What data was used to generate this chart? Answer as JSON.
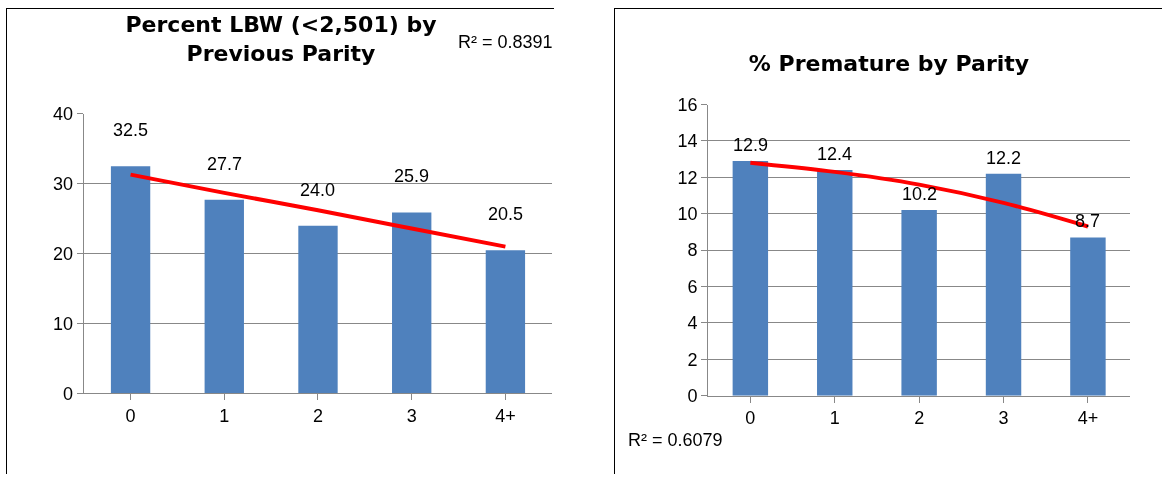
{
  "chart_data": [
    {
      "type": "bar",
      "title": "Percent LBW (<2,501) by\nPrevious Parity",
      "categories": [
        "0",
        "1",
        "2",
        "3",
        "4+"
      ],
      "series": [
        {
          "type": "bar",
          "color": "#4f81bd",
          "values": [
            32.5,
            27.7,
            24.0,
            25.9,
            20.5
          ],
          "value_labels": [
            "32.5",
            "27.7",
            "24.0",
            "25.9",
            "20.5"
          ]
        },
        {
          "type": "line",
          "color": "#ff0000",
          "x": [
            "0",
            "1",
            "2",
            "3",
            "4+"
          ],
          "values": [
            31.3,
            28.7,
            26.2,
            23.6,
            21.0
          ]
        }
      ],
      "ylim": [
        0,
        40
      ],
      "yticks": [
        0,
        10,
        20,
        30,
        40
      ],
      "grid": "y",
      "annotations": [
        "R² = 0.8391"
      ]
    },
    {
      "type": "bar",
      "title": "% Premature by Parity",
      "categories": [
        "0",
        "1",
        "2",
        "3",
        "4+"
      ],
      "series": [
        {
          "type": "bar",
          "color": "#4f81bd",
          "values": [
            12.9,
            12.4,
            10.2,
            12.2,
            8.7
          ],
          "value_labels": [
            "12.9",
            "12.4",
            "10.2",
            "12.2",
            "8.7"
          ]
        },
        {
          "type": "line",
          "color": "#ff0000",
          "x": [
            "0",
            "1",
            "2",
            "3",
            "4+"
          ],
          "values": [
            12.8,
            12.3,
            11.6,
            10.6,
            9.3
          ]
        }
      ],
      "ylim": [
        0,
        16
      ],
      "yticks": [
        0,
        2,
        4,
        6,
        8,
        10,
        12,
        14,
        16
      ],
      "grid": "y",
      "annotations": [
        "R² = 0.6079"
      ]
    }
  ]
}
